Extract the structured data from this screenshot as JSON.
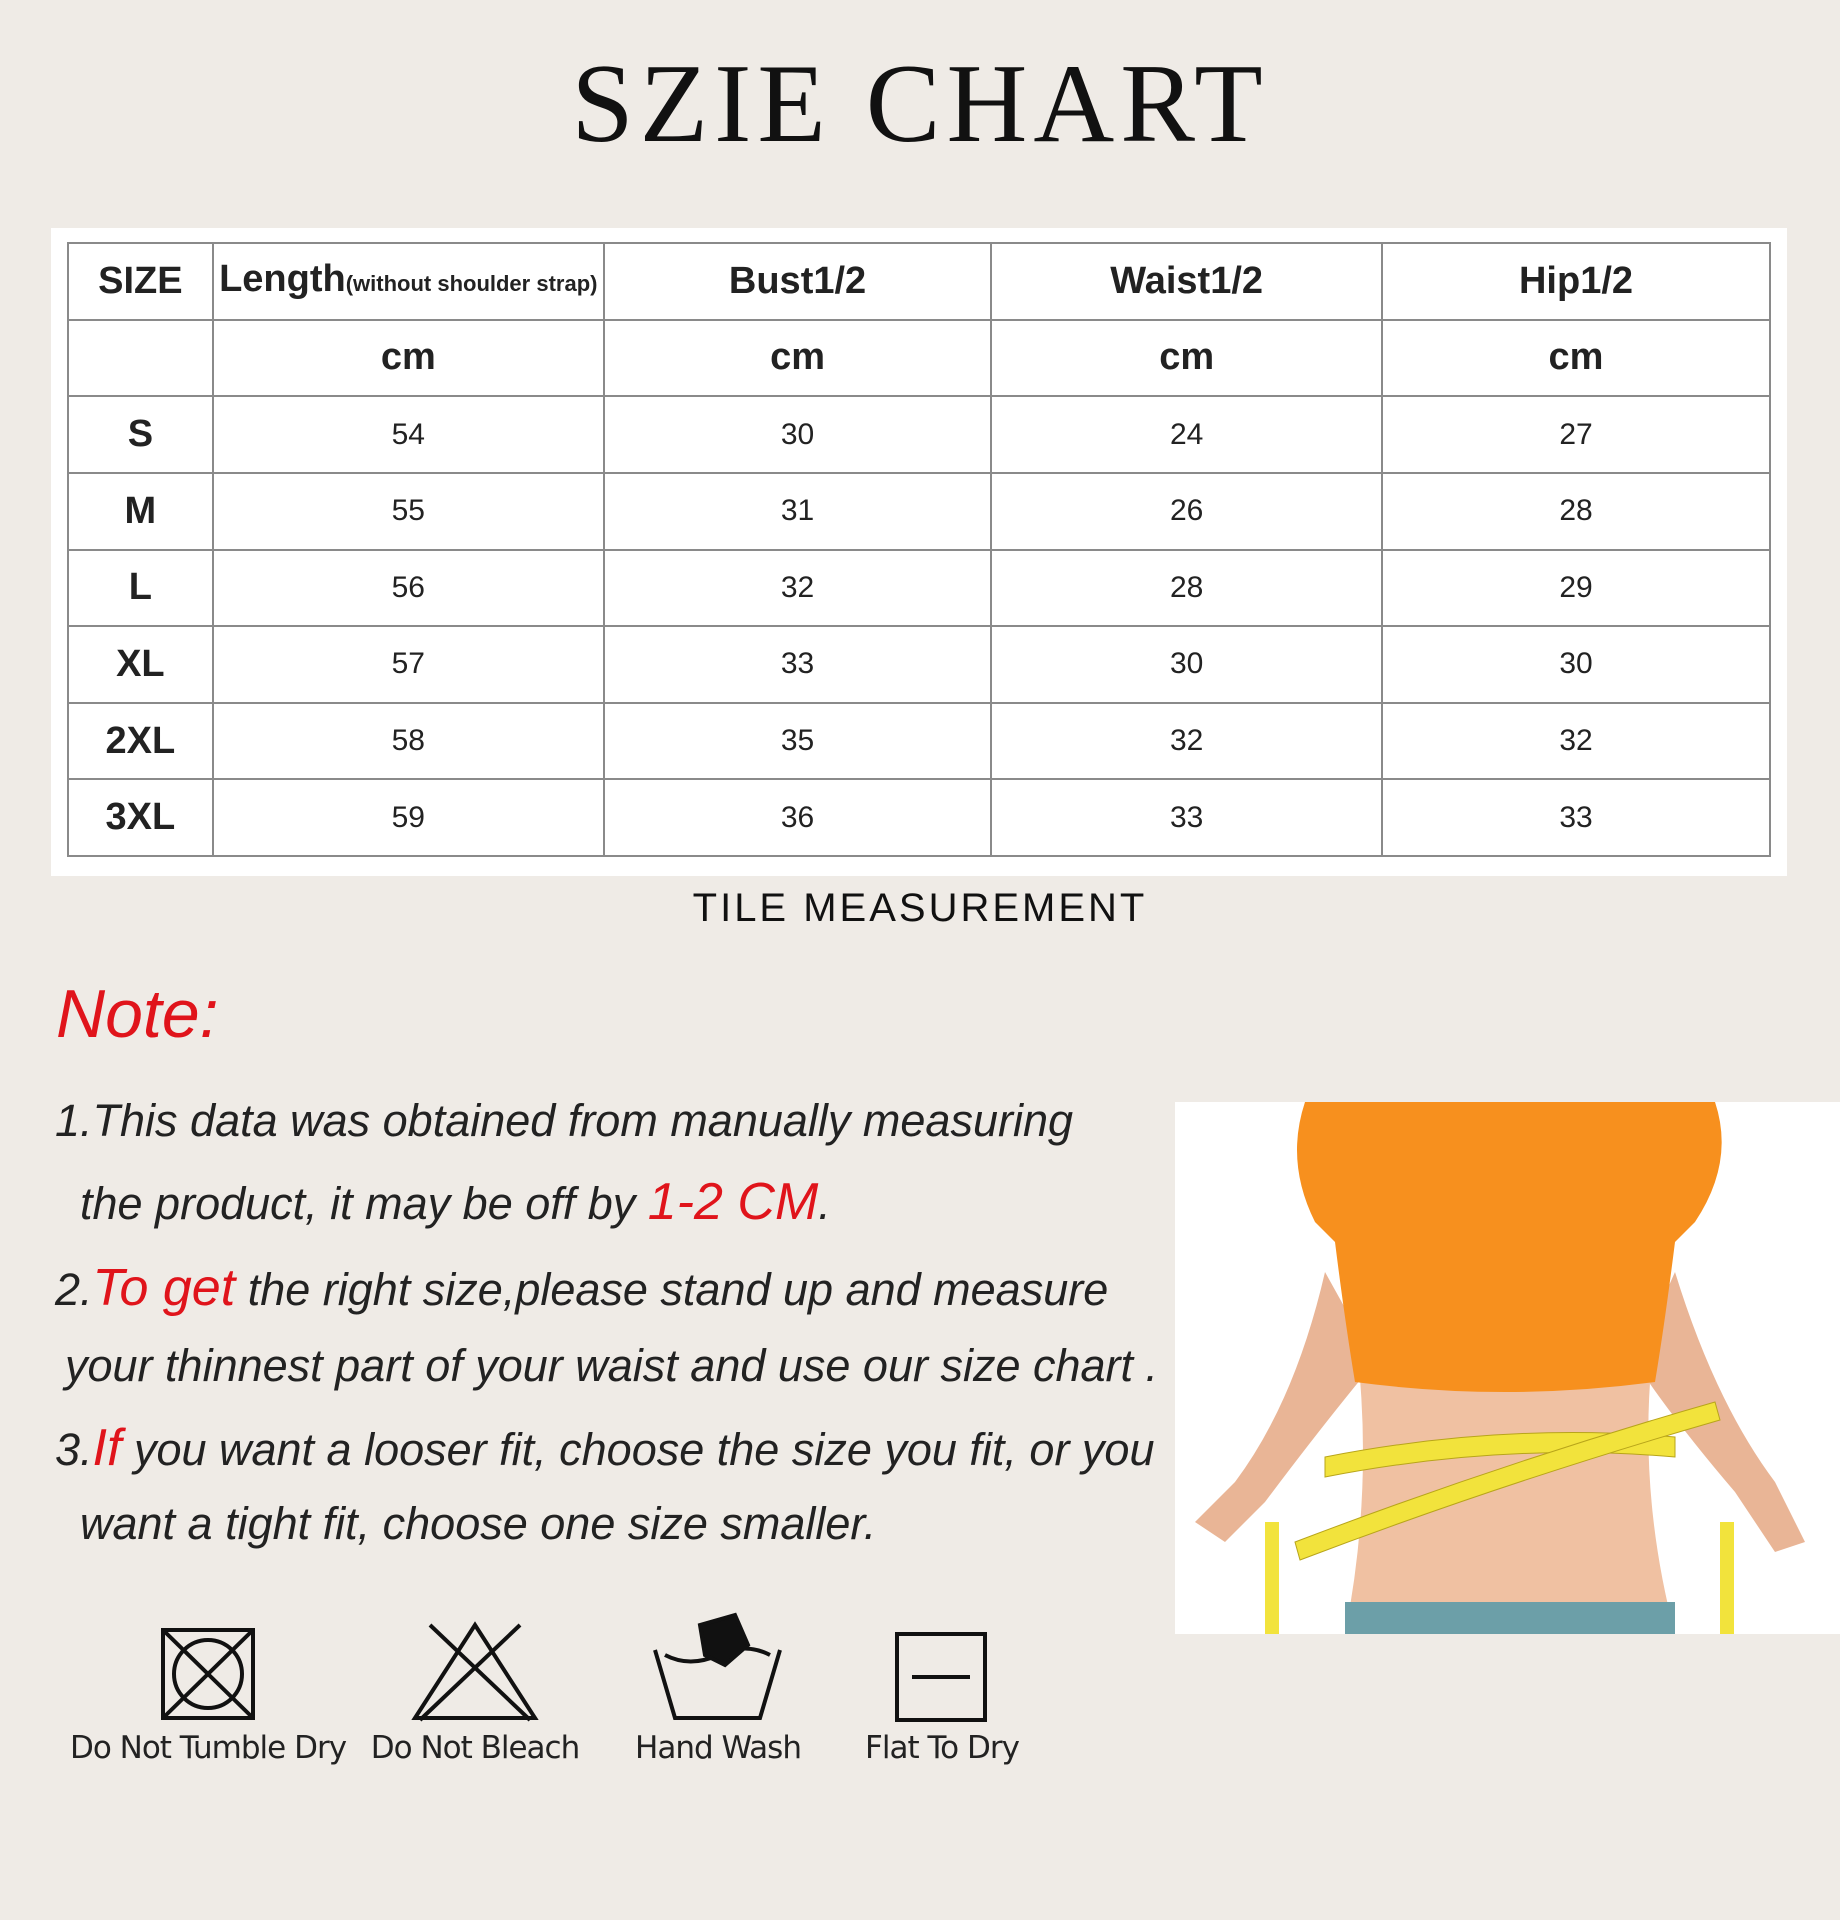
{
  "header": {
    "title": "SZIE CHART"
  },
  "table": {
    "columns": [
      {
        "label": "SIZE"
      },
      {
        "label": "Length",
        "note": "(without shoulder strap)"
      },
      {
        "label": "Bust1/2"
      },
      {
        "label": "Waist1/2"
      },
      {
        "label": "Hip1/2"
      }
    ],
    "units": [
      "cm",
      "cm",
      "cm",
      "cm"
    ],
    "rows": [
      [
        "S",
        "54",
        "30",
        "24",
        "27"
      ],
      [
        "M",
        "55",
        "31",
        "26",
        "28"
      ],
      [
        "L",
        "56",
        "32",
        "28",
        "29"
      ],
      [
        "XL",
        "57",
        "33",
        "30",
        "30"
      ],
      [
        "2XL",
        "58",
        "35",
        "32",
        "32"
      ],
      [
        "3XL",
        "59",
        "36",
        "33",
        "33"
      ]
    ],
    "caption": "TILE MEASUREMENT"
  },
  "note": {
    "title": "Note:",
    "lines": [
      [
        {
          "text": "1.This data was obtained from manually measuring"
        }
      ],
      [
        {
          "text": "the product, it may be off by "
        },
        {
          "text": "1-2 CM",
          "highlight": true
        },
        {
          "text": "."
        }
      ],
      [
        {
          "text": "2."
        },
        {
          "text": "To get",
          "highlight": true
        },
        {
          "text": " the right size,please stand up and measure"
        }
      ],
      [
        {
          "text": "your thinnest part of your waist and use our size chart ."
        }
      ],
      [
        {
          "text": "3."
        },
        {
          "text": "If",
          "highlight": true
        },
        {
          "text": " you want a looser fit, choose the size you fit, or you"
        }
      ],
      [
        {
          "text": "want a tight fit, choose one size smaller."
        }
      ]
    ]
  },
  "care": [
    "Do Not Tumble Dry",
    "Do Not Bleach",
    "Hand Wash",
    "Flat To Dry"
  ]
}
